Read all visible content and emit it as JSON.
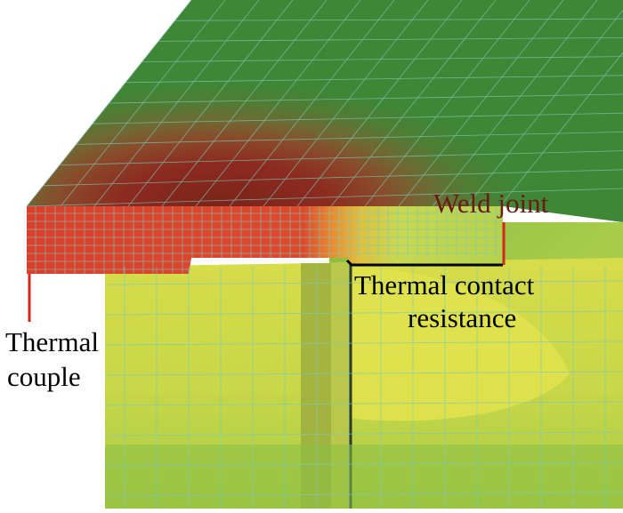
{
  "labels": {
    "weld_joint": "Weld joint",
    "thermal_contact_resistance_line1": "Thermal contact",
    "thermal_contact_resistance_line2": "resistance",
    "thermal_couple_line1": "Thermal",
    "thermal_couple_line2": "couple"
  },
  "colors": {
    "cool_green": "#3f8636",
    "mid_green": "#6aa53c",
    "yellow_green": "#c6d84c",
    "yellow": "#e2e34c",
    "orange": "#e48a2a",
    "red": "#d9402c",
    "dark_red": "#8c2a20",
    "mesh_line": "#7ec8b8",
    "weld_label": "#6b1a14"
  }
}
